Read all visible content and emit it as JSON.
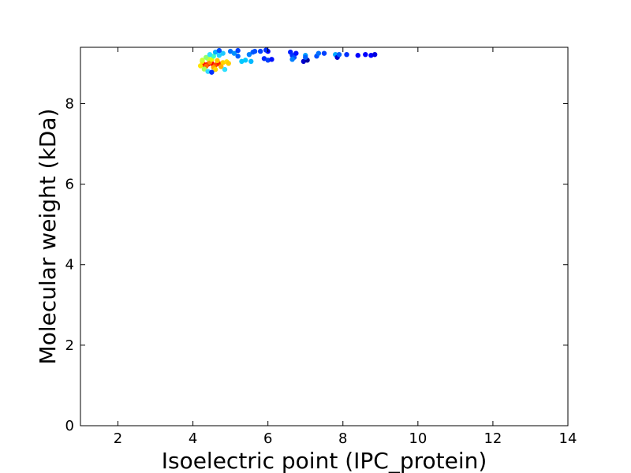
{
  "chart_data": {
    "type": "scatter",
    "xlabel": "Isoelectric point (IPC_protein)",
    "ylabel": "Molecular weight (kDa)",
    "xlim": [
      1,
      14
    ],
    "ylim": [
      0,
      9.4
    ],
    "xticks": [
      2,
      4,
      6,
      8,
      10,
      12,
      14
    ],
    "yticks": [
      0,
      2,
      4,
      6,
      8
    ],
    "grid": false,
    "colormap": "jet (point density)",
    "points": [
      {
        "x": 4.3,
        "y": 8.97,
        "c": "#ff0000"
      },
      {
        "x": 4.4,
        "y": 8.98,
        "c": "#ff2a00"
      },
      {
        "x": 4.5,
        "y": 9.0,
        "c": "#ff0000"
      },
      {
        "x": 4.6,
        "y": 8.96,
        "c": "#ff4a00"
      },
      {
        "x": 4.45,
        "y": 9.03,
        "c": "#ff8c00"
      },
      {
        "x": 4.7,
        "y": 8.99,
        "c": "#ff2000"
      },
      {
        "x": 4.35,
        "y": 8.93,
        "c": "#ff6a00"
      },
      {
        "x": 4.55,
        "y": 8.9,
        "c": "#ffa500"
      },
      {
        "x": 4.65,
        "y": 9.07,
        "c": "#ffc800"
      },
      {
        "x": 4.25,
        "y": 9.05,
        "c": "#ffd700"
      },
      {
        "x": 4.8,
        "y": 9.02,
        "c": "#ffd000"
      },
      {
        "x": 4.5,
        "y": 9.1,
        "c": "#eaff00"
      },
      {
        "x": 4.4,
        "y": 9.12,
        "c": "#c8ff30"
      },
      {
        "x": 4.9,
        "y": 9.04,
        "c": "#ffe000"
      },
      {
        "x": 4.2,
        "y": 8.94,
        "c": "#ffe600"
      },
      {
        "x": 4.3,
        "y": 8.86,
        "c": "#aaff55"
      },
      {
        "x": 4.6,
        "y": 8.85,
        "c": "#ffd800"
      },
      {
        "x": 4.75,
        "y": 8.92,
        "c": "#ffb000"
      },
      {
        "x": 4.35,
        "y": 9.15,
        "c": "#8fff70"
      },
      {
        "x": 4.55,
        "y": 9.18,
        "c": "#40ffc0"
      },
      {
        "x": 4.45,
        "y": 9.22,
        "c": "#30e0ff"
      },
      {
        "x": 4.7,
        "y": 9.2,
        "c": "#20d0ff"
      },
      {
        "x": 4.8,
        "y": 9.25,
        "c": "#20c8ff"
      },
      {
        "x": 4.25,
        "y": 9.08,
        "c": "#ccff33"
      },
      {
        "x": 4.85,
        "y": 8.85,
        "c": "#30e0ff"
      },
      {
        "x": 4.95,
        "y": 9.0,
        "c": "#ffcc00"
      },
      {
        "x": 4.4,
        "y": 8.8,
        "c": "#30d8ff"
      },
      {
        "x": 4.5,
        "y": 8.78,
        "c": "#0030ff"
      },
      {
        "x": 4.6,
        "y": 9.28,
        "c": "#00b0ff"
      },
      {
        "x": 5.0,
        "y": 9.3,
        "c": "#0070ff"
      },
      {
        "x": 5.1,
        "y": 9.25,
        "c": "#0090ff"
      },
      {
        "x": 5.2,
        "y": 9.32,
        "c": "#0040ff"
      },
      {
        "x": 5.3,
        "y": 9.05,
        "c": "#00c8ff"
      },
      {
        "x": 5.4,
        "y": 9.08,
        "c": "#00c8ff"
      },
      {
        "x": 5.5,
        "y": 9.22,
        "c": "#0080ff"
      },
      {
        "x": 5.6,
        "y": 9.28,
        "c": "#0060ff"
      },
      {
        "x": 5.55,
        "y": 9.05,
        "c": "#00b8ff"
      },
      {
        "x": 5.65,
        "y": 9.3,
        "c": "#0050ff"
      },
      {
        "x": 5.8,
        "y": 9.3,
        "c": "#0040ff"
      },
      {
        "x": 5.9,
        "y": 9.12,
        "c": "#0028ff"
      },
      {
        "x": 6.0,
        "y": 9.08,
        "c": "#0040ff"
      },
      {
        "x": 6.0,
        "y": 9.3,
        "c": "#0000ff"
      },
      {
        "x": 6.1,
        "y": 9.1,
        "c": "#0010ff"
      },
      {
        "x": 5.95,
        "y": 9.33,
        "c": "#0030ff"
      },
      {
        "x": 6.6,
        "y": 9.28,
        "c": "#0020ff"
      },
      {
        "x": 6.65,
        "y": 9.2,
        "c": "#0030ff"
      },
      {
        "x": 6.7,
        "y": 9.15,
        "c": "#0050ff"
      },
      {
        "x": 6.75,
        "y": 9.25,
        "c": "#0010ff"
      },
      {
        "x": 6.65,
        "y": 9.1,
        "c": "#0080ff"
      },
      {
        "x": 6.95,
        "y": 9.05,
        "c": "#0000cc"
      },
      {
        "x": 7.0,
        "y": 9.2,
        "c": "#00a0ff"
      },
      {
        "x": 7.05,
        "y": 9.08,
        "c": "#0000a0"
      },
      {
        "x": 7.0,
        "y": 9.15,
        "c": "#0060ff"
      },
      {
        "x": 7.3,
        "y": 9.18,
        "c": "#0050ff"
      },
      {
        "x": 7.35,
        "y": 9.25,
        "c": "#0070ff"
      },
      {
        "x": 7.5,
        "y": 9.25,
        "c": "#0040ff"
      },
      {
        "x": 7.8,
        "y": 9.22,
        "c": "#00a8ff"
      },
      {
        "x": 7.85,
        "y": 9.15,
        "c": "#0000d0"
      },
      {
        "x": 7.9,
        "y": 9.22,
        "c": "#0060ff"
      },
      {
        "x": 8.1,
        "y": 9.22,
        "c": "#0030ff"
      },
      {
        "x": 8.4,
        "y": 9.2,
        "c": "#0000ff"
      },
      {
        "x": 8.6,
        "y": 9.22,
        "c": "#0000ff"
      },
      {
        "x": 8.75,
        "y": 9.2,
        "c": "#0000ff"
      },
      {
        "x": 8.85,
        "y": 9.22,
        "c": "#0000e0"
      },
      {
        "x": 4.7,
        "y": 9.32,
        "c": "#0050ff"
      },
      {
        "x": 5.2,
        "y": 9.18,
        "c": "#0060ff"
      }
    ]
  }
}
